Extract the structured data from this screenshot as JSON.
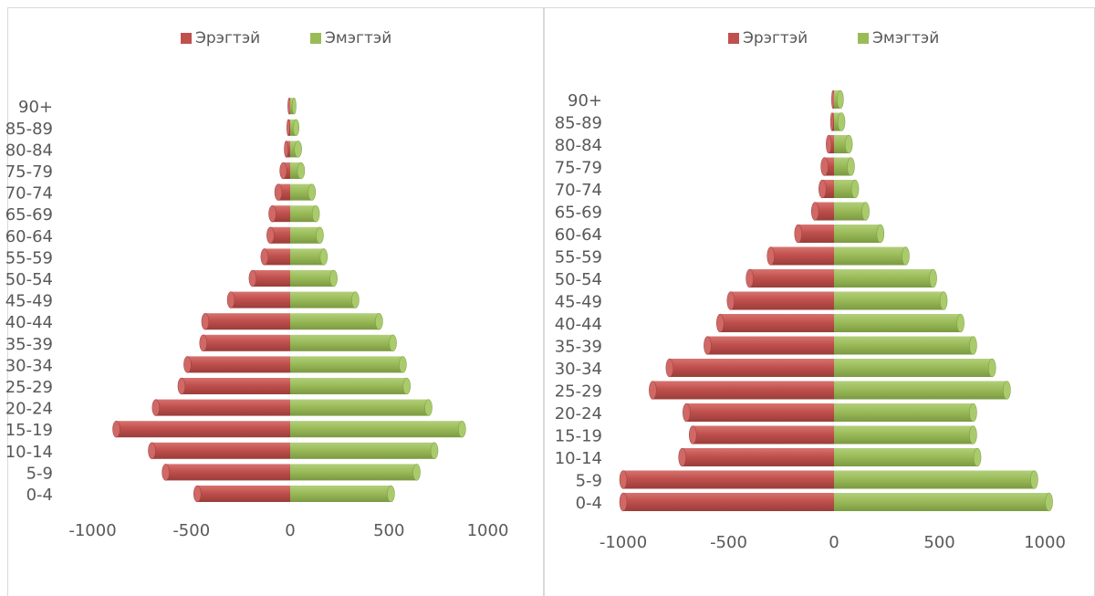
{
  "chart_data": [
    {
      "type": "bar",
      "orientation": "horizontal",
      "subtype": "population-pyramid",
      "categories": [
        "0-4",
        "5-9",
        "10-14",
        "15-19",
        "20-24",
        "25-29",
        "30-34",
        "35-39",
        "40-44",
        "45-49",
        "50-54",
        "55-59",
        "60-64",
        "65-69",
        "70-74",
        "75-79",
        "80-84",
        "85-89",
        "90+"
      ],
      "series": [
        {
          "name": "Эрэгтэй",
          "color": "#c0504d",
          "values": [
            -470,
            -630,
            -700,
            -880,
            -680,
            -550,
            -520,
            -440,
            -430,
            -300,
            -190,
            -130,
            -100,
            -90,
            -60,
            -35,
            -20,
            -10,
            -5
          ]
        },
        {
          "name": "Эмэгтэй",
          "color": "#9bbb59",
          "values": [
            510,
            640,
            730,
            870,
            700,
            590,
            570,
            520,
            450,
            330,
            220,
            170,
            150,
            130,
            110,
            55,
            40,
            30,
            20
          ]
        }
      ],
      "xlim": [
        -1000,
        1000
      ],
      "xticks": [
        "-1000",
        "-500",
        "0",
        "500",
        "1000"
      ],
      "legend": "top",
      "grid": false
    },
    {
      "type": "bar",
      "orientation": "horizontal",
      "subtype": "population-pyramid",
      "categories": [
        "0-4",
        "5-9",
        "10-14",
        "15-19",
        "20-24",
        "25-29",
        "30-34",
        "35-39",
        "40-44",
        "45-49",
        "50-54",
        "55-59",
        "60-64",
        "65-69",
        "70-74",
        "75-79",
        "80-84",
        "85-89",
        "90+"
      ],
      "series": [
        {
          "name": "Эрэгтэй",
          "color": "#c0504d",
          "values": [
            -1000,
            -1000,
            -720,
            -670,
            -700,
            -860,
            -780,
            -600,
            -540,
            -490,
            -400,
            -300,
            -170,
            -90,
            -55,
            -45,
            -25,
            -10,
            -5
          ]
        },
        {
          "name": "Эмэгтэй",
          "color": "#9bbb59",
          "values": [
            1020,
            950,
            680,
            660,
            660,
            820,
            750,
            660,
            600,
            520,
            470,
            340,
            220,
            150,
            100,
            80,
            70,
            35,
            30
          ]
        }
      ],
      "xlim": [
        -1000,
        1000
      ],
      "xticks": [
        "-1000",
        "-500",
        "0",
        "500",
        "1000"
      ],
      "legend": "top",
      "grid": false
    }
  ]
}
